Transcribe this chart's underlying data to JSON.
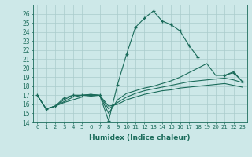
{
  "xlabel": "Humidex (Indice chaleur)",
  "bg_color": "#cde8e8",
  "grid_color": "#b8d8d8",
  "line_color": "#1a6b5a",
  "xlim": [
    -0.5,
    23.5
  ],
  "ylim": [
    14,
    27
  ],
  "yticks": [
    14,
    15,
    16,
    17,
    18,
    19,
    20,
    21,
    22,
    23,
    24,
    25,
    26
  ],
  "xticks": [
    0,
    1,
    2,
    3,
    4,
    5,
    6,
    7,
    8,
    9,
    10,
    11,
    12,
    13,
    14,
    15,
    16,
    17,
    18,
    19,
    20,
    21,
    22,
    23
  ],
  "series": [
    {
      "x": [
        0,
        1,
        2,
        3,
        4,
        5,
        6,
        7,
        8,
        9,
        10,
        11,
        12,
        13,
        14,
        15,
        16,
        17,
        18,
        19,
        20,
        21,
        22,
        23
      ],
      "y": [
        17.0,
        15.5,
        15.8,
        16.7,
        17.0,
        17.0,
        17.0,
        17.0,
        14.2,
        18.2,
        21.5,
        24.5,
        25.5,
        26.3,
        25.2,
        24.8,
        24.1,
        22.5,
        21.2,
        null,
        null,
        19.2,
        19.5,
        18.5
      ],
      "marker": true
    },
    {
      "x": [
        0,
        1,
        2,
        3,
        4,
        5,
        6,
        7,
        8,
        9,
        10,
        11,
        12,
        13,
        14,
        15,
        16,
        17,
        18,
        19,
        20,
        21,
        22,
        23
      ],
      "y": [
        17.0,
        15.5,
        15.8,
        16.5,
        17.0,
        17.0,
        17.1,
        17.0,
        15.0,
        16.5,
        17.2,
        17.5,
        17.8,
        18.0,
        18.3,
        18.6,
        19.0,
        19.5,
        20.0,
        20.5,
        19.2,
        19.2,
        19.6,
        18.5
      ],
      "marker": false
    },
    {
      "x": [
        0,
        1,
        2,
        3,
        4,
        5,
        6,
        7,
        8,
        9,
        10,
        11,
        12,
        13,
        14,
        15,
        16,
        17,
        18,
        19,
        20,
        21,
        22,
        23
      ],
      "y": [
        17.0,
        15.5,
        15.8,
        16.3,
        16.8,
        17.0,
        17.1,
        17.0,
        15.5,
        16.2,
        16.8,
        17.2,
        17.5,
        17.7,
        17.9,
        18.1,
        18.3,
        18.5,
        18.6,
        18.7,
        18.8,
        18.9,
        18.7,
        18.4
      ],
      "marker": false
    },
    {
      "x": [
        0,
        1,
        2,
        3,
        4,
        5,
        6,
        7,
        8,
        9,
        10,
        11,
        12,
        13,
        14,
        15,
        16,
        17,
        18,
        19,
        20,
        21,
        22,
        23
      ],
      "y": [
        17.0,
        15.5,
        15.8,
        16.2,
        16.5,
        16.8,
        16.9,
        17.0,
        15.8,
        16.0,
        16.5,
        16.8,
        17.1,
        17.3,
        17.5,
        17.6,
        17.8,
        17.9,
        18.0,
        18.1,
        18.2,
        18.3,
        18.1,
        17.9
      ],
      "marker": false
    }
  ]
}
